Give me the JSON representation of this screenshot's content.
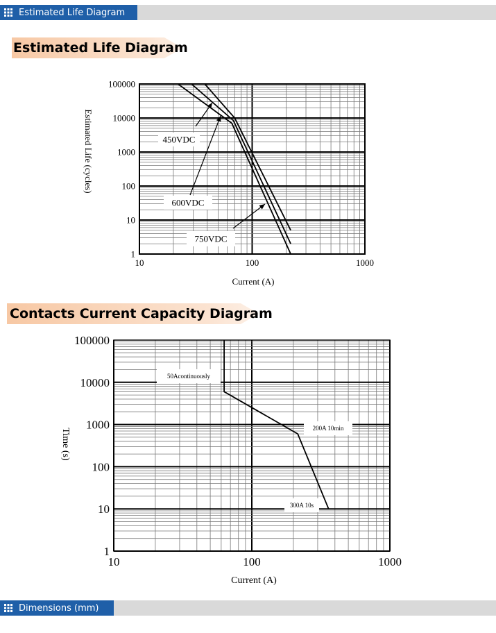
{
  "header_top": {
    "label": "Estimated Life Diagram",
    "icon": "grid-icon"
  },
  "header_bottom": {
    "label": "Dimensions (mm)",
    "icon": "grid-icon"
  },
  "headings": {
    "life": "Estimated Life Diagram",
    "capacity": "Contacts Current Capacity Diagram"
  },
  "colors": {
    "tab_blue": "#1f5fa8",
    "bar_gray": "#d9d9d9",
    "banner_orange": "#f7c8a4"
  },
  "chart_data": [
    {
      "type": "line",
      "title": "",
      "xlabel": "Current (A)",
      "ylabel": "Estimated Life (cycles)",
      "xscale": "log",
      "yscale": "log",
      "xlim": [
        10,
        1000
      ],
      "ylim": [
        1,
        100000
      ],
      "x_ticks": [
        "10",
        "100",
        "1000"
      ],
      "y_ticks": [
        "1",
        "10",
        "100",
        "1000",
        "10000",
        "100000"
      ],
      "grid": true,
      "series": [
        {
          "name": "450VDC",
          "points": [
            [
              22,
              100000
            ],
            [
              66,
              7000
            ],
            [
              220,
              1
            ]
          ]
        },
        {
          "name": "600VDC",
          "points": [
            [
              29,
              100000
            ],
            [
              68,
              8500
            ],
            [
              220,
              2
            ]
          ]
        },
        {
          "name": "750VDC",
          "points": [
            [
              38,
              100000
            ],
            [
              70,
              10000
            ],
            [
              220,
              5
            ]
          ]
        }
      ],
      "annotations": [
        {
          "text": "450VDC",
          "x": 45,
          "y": 3000
        },
        {
          "text": "600VDC",
          "x": 60,
          "y": 8500
        },
        {
          "text": "750VDC",
          "x": 130,
          "y": 25
        }
      ]
    },
    {
      "type": "line",
      "title": "",
      "xlabel": "Current (A)",
      "ylabel": "Time (s)",
      "xscale": "log",
      "yscale": "log",
      "xlim": [
        10,
        1000
      ],
      "ylim": [
        1,
        100000
      ],
      "x_ticks": [
        "10",
        "100",
        "1000"
      ],
      "y_ticks": [
        "1",
        "10",
        "100",
        "1000",
        "10000",
        "100000"
      ],
      "grid": true,
      "series": [
        {
          "points": [
            [
              63,
              100000
            ],
            [
              63,
              6000
            ],
            [
              215,
              600
            ],
            [
              360,
              10
            ]
          ]
        }
      ],
      "annotations": [
        {
          "text": "50Acontinuously"
        },
        {
          "text": "200A 10min"
        },
        {
          "text": "300A 10s"
        }
      ]
    }
  ]
}
